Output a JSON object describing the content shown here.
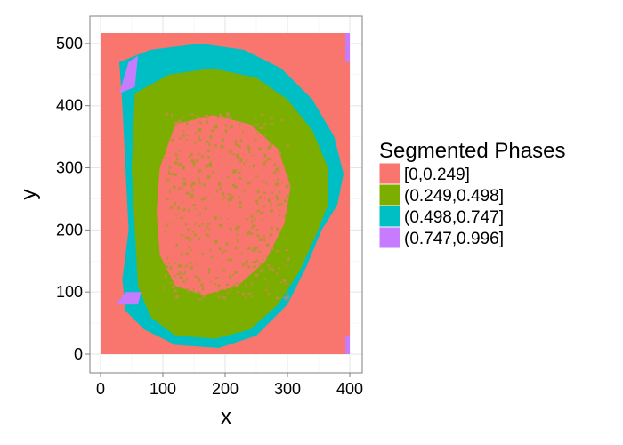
{
  "chart_data": {
    "type": "heatmap",
    "title": "",
    "xlabel": "x",
    "ylabel": "y",
    "xlim": [
      0,
      400
    ],
    "ylim": [
      0,
      517
    ],
    "x_ticks": [
      0,
      100,
      200,
      300,
      400
    ],
    "y_ticks": [
      0,
      100,
      200,
      300,
      400,
      500
    ],
    "grid": true,
    "legend": {
      "title": "Segmented Phases",
      "position": "right",
      "entries": [
        {
          "label": "[0,0.249]",
          "color": "#F8766D"
        },
        {
          "label": "(0.249,0.498]",
          "color": "#7CAE00"
        },
        {
          "label": "(0.498,0.747]",
          "color": "#00BFC4"
        },
        {
          "label": "(0.747,0.996]",
          "color": "#C77CFF"
        }
      ]
    },
    "regions": [
      {
        "phase": "[0,0.249]",
        "description_points": [
          [
            0,
            0
          ],
          [
            400,
            0
          ],
          [
            400,
            517
          ],
          [
            0,
            517
          ]
        ]
      },
      {
        "phase": "(0.498,0.747]",
        "description_points": [
          [
            30,
            470
          ],
          [
            80,
            490
          ],
          [
            160,
            500
          ],
          [
            230,
            490
          ],
          [
            290,
            460
          ],
          [
            340,
            410
          ],
          [
            375,
            350
          ],
          [
            390,
            290
          ],
          [
            380,
            240
          ],
          [
            355,
            200
          ],
          [
            330,
            140
          ],
          [
            300,
            80
          ],
          [
            250,
            30
          ],
          [
            190,
            10
          ],
          [
            120,
            15
          ],
          [
            70,
            40
          ],
          [
            40,
            70
          ],
          [
            35,
            120
          ],
          [
            45,
            200
          ],
          [
            40,
            300
          ],
          [
            35,
            400
          ]
        ]
      },
      {
        "phase": "(0.249,0.498]",
        "description_points": [
          [
            55,
            420
          ],
          [
            110,
            450
          ],
          [
            180,
            460
          ],
          [
            250,
            445
          ],
          [
            300,
            410
          ],
          [
            340,
            360
          ],
          [
            365,
            300
          ],
          [
            365,
            240
          ],
          [
            345,
            190
          ],
          [
            320,
            135
          ],
          [
            285,
            80
          ],
          [
            240,
            40
          ],
          [
            185,
            25
          ],
          [
            120,
            30
          ],
          [
            80,
            60
          ],
          [
            60,
            110
          ],
          [
            55,
            200
          ],
          [
            50,
            300
          ]
        ]
      },
      {
        "phase": "[0,0.249]",
        "description_points": [
          [
            120,
            370
          ],
          [
            180,
            385
          ],
          [
            240,
            370
          ],
          [
            285,
            330
          ],
          [
            305,
            270
          ],
          [
            295,
            210
          ],
          [
            265,
            150
          ],
          [
            220,
            110
          ],
          [
            165,
            95
          ],
          [
            120,
            110
          ],
          [
            95,
            160
          ],
          [
            90,
            230
          ],
          [
            95,
            300
          ]
        ]
      },
      {
        "phase": "(0.747,0.996]",
        "description_points": [
          [
            30,
            420
          ],
          [
            45,
            470
          ],
          [
            60,
            480
          ],
          [
            55,
            430
          ]
        ]
      },
      {
        "phase": "(0.747,0.996]",
        "description_points": [
          [
            25,
            80
          ],
          [
            40,
            100
          ],
          [
            65,
            100
          ],
          [
            60,
            80
          ]
        ]
      },
      {
        "phase": "(0.747,0.996]",
        "description_points": [
          [
            393,
            470
          ],
          [
            400,
            470
          ],
          [
            400,
            517
          ],
          [
            393,
            517
          ]
        ]
      },
      {
        "phase": "(0.747,0.996]",
        "description_points": [
          [
            393,
            0
          ],
          [
            400,
            0
          ],
          [
            400,
            30
          ],
          [
            393,
            30
          ]
        ]
      }
    ]
  }
}
